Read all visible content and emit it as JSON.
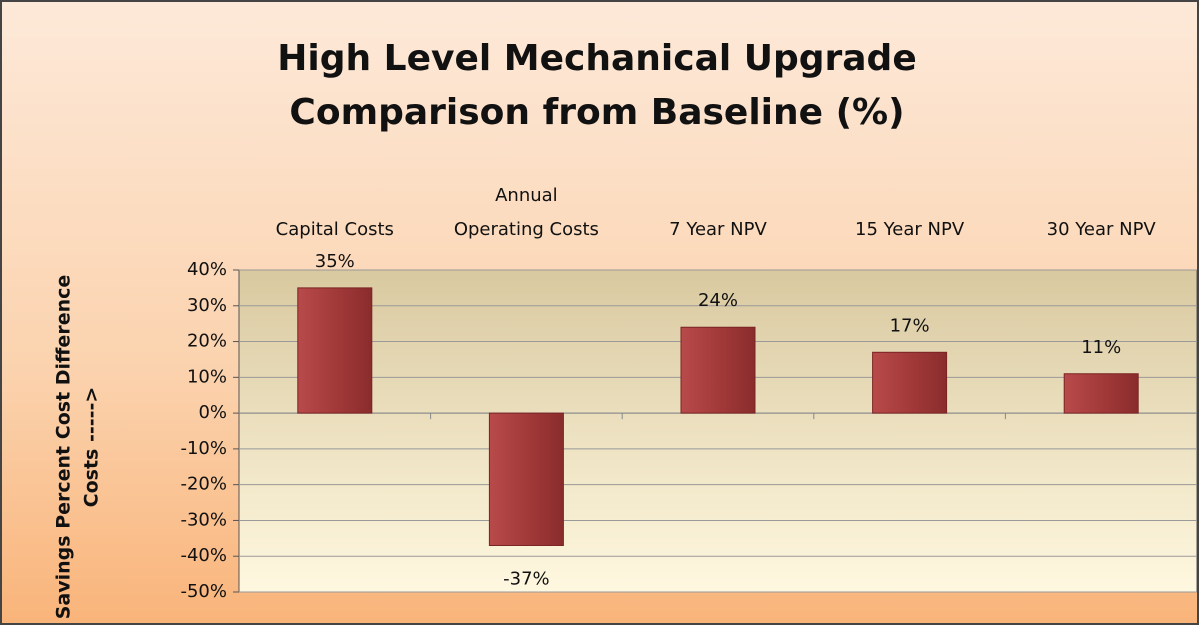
{
  "chart_data": {
    "type": "bar",
    "title": "High Level Mechanical Upgrade Comparison from Baseline (%)",
    "y_label": [
      "Savings   Percent Cost Difference",
      "Costs  ----->"
    ],
    "categories": [
      "Capital Costs",
      "Annual\nOperating Costs",
      "7 Year NPV",
      "15 Year NPV",
      "30 Year NPV"
    ],
    "values": [
      35,
      -37,
      24,
      17,
      11
    ],
    "value_labels": [
      "35%",
      "-37%",
      "24%",
      "17%",
      "11%"
    ],
    "color": "#a33a3a",
    "ylim": [
      -50,
      40
    ],
    "yticks": [
      {
        "value": -50,
        "label": "-50%"
      },
      {
        "value": -40,
        "label": "-40%"
      },
      {
        "value": -30,
        "label": "-30%"
      },
      {
        "value": -20,
        "label": "-20%"
      },
      {
        "value": -10,
        "label": "-10%"
      },
      {
        "value": 0,
        "label": "0%"
      },
      {
        "value": 10,
        "label": "10%"
      },
      {
        "value": 20,
        "label": "20%"
      },
      {
        "value": 30,
        "label": "30%"
      },
      {
        "value": 40,
        "label": "40%"
      }
    ],
    "grid": true
  }
}
